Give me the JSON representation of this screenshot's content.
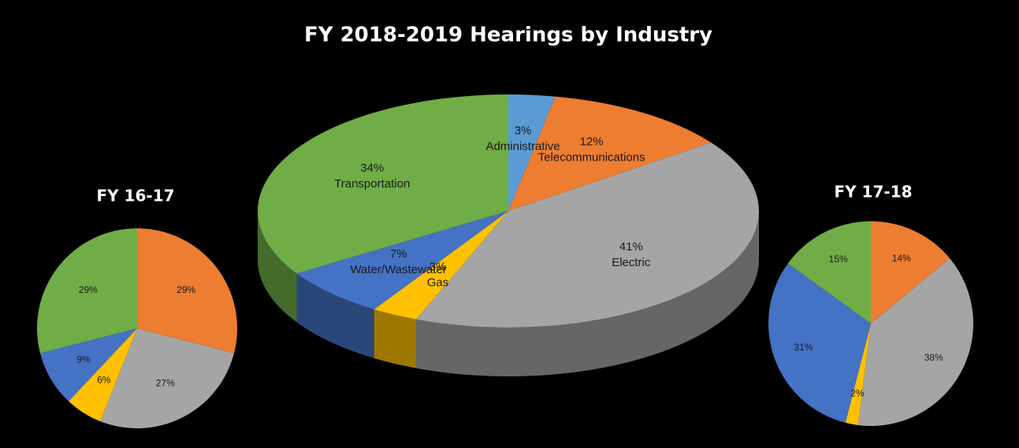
{
  "chart_data": [
    {
      "type": "pie",
      "title": "FY 2018-2019 Hearings by Industry",
      "3d": true,
      "categories": [
        "Administrative",
        "Telecommunications",
        "Electric",
        "Gas",
        "Water/Wastewater",
        "Transportation"
      ],
      "values": [
        3,
        12,
        41,
        3,
        7,
        34
      ],
      "value_labels": [
        "3%",
        "12%",
        "41%",
        "3%",
        "7%",
        "34%"
      ],
      "colors": [
        "#5b9bd5",
        "#ed7d31",
        "#a5a5a5",
        "#ffc000",
        "#4472c4",
        "#70ad47"
      ]
    },
    {
      "type": "pie",
      "title": "FY 16-17",
      "values": [
        29,
        27,
        6,
        9,
        29
      ],
      "value_labels": [
        "29%",
        "27%",
        "6%",
        "9%",
        "29%"
      ],
      "colors": [
        "#ed7d31",
        "#a5a5a5",
        "#ffc000",
        "#4472c4",
        "#70ad47"
      ]
    },
    {
      "type": "pie",
      "title": "FY 17-18",
      "values": [
        14,
        38,
        2,
        31,
        15
      ],
      "value_labels": [
        "14%",
        "38%",
        "2%",
        "31%",
        "15%"
      ],
      "colors": [
        "#ed7d31",
        "#a5a5a5",
        "#ffc000",
        "#4472c4",
        "#70ad47"
      ]
    }
  ]
}
